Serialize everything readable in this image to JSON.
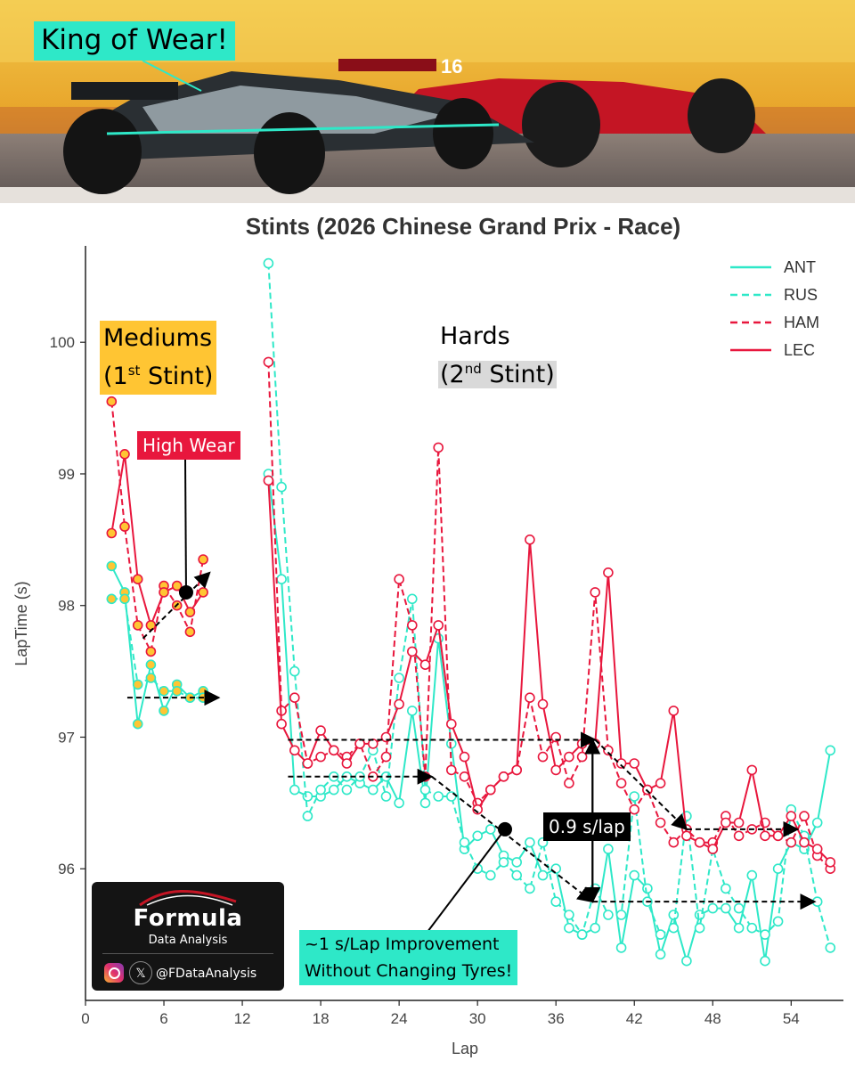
{
  "banner": {
    "label": "King of Wear!"
  },
  "annotations": {
    "mediums_line1": "Mediums",
    "mediums_line2_pre": "(1",
    "mediums_sup": "st",
    "mediums_line2_post": " Stint)",
    "hards_line1": "Hards",
    "hards_line2_pre": "(2",
    "hards_sup": "nd",
    "hards_line2_post": " Stint)",
    "high_wear": "High Wear",
    "rate_gap": "0.9 s/lap",
    "improvement_line1": "~1 s/Lap Improvement",
    "improvement_line2": "Without Changing Tyres!"
  },
  "logo": {
    "name": "Formula",
    "sub": "Data Analysis",
    "handle": "@FDataAnalysis",
    "x_glyph": "𝕏",
    "icons": [
      "instagram-icon",
      "x-icon"
    ]
  },
  "colors": {
    "cyan": "#2ee8c8",
    "red": "#e8173d",
    "marker_fill_mediums": "#ffc533"
  },
  "chart_data": {
    "type": "line",
    "title": "Stints (2026 Chinese Grand Prix - Race)",
    "xlabel": "Lap",
    "ylabel": "LapTime (s)",
    "xlim": [
      0,
      58
    ],
    "ylim": [
      95,
      100.8
    ],
    "xticks": [
      0,
      6,
      12,
      18,
      24,
      30,
      36,
      42,
      48,
      54
    ],
    "yticks": [
      96,
      97,
      98,
      99,
      100
    ],
    "legend_position": "top-right",
    "series": [
      {
        "name": "ANT",
        "color": "#2ee8c8",
        "style": "solid",
        "stints": [
          {
            "tyre": "MEDIUM",
            "x": [
              2,
              3,
              4,
              5,
              6,
              7,
              8,
              9
            ],
            "y": [
              98.3,
              98.1,
              97.1,
              97.55,
              97.2,
              97.4,
              97.3,
              97.35
            ]
          },
          {
            "tyre": "HARD",
            "x": [
              14,
              15,
              16,
              17,
              18,
              19,
              20,
              21,
              22,
              23,
              24,
              25,
              26,
              27,
              28,
              29,
              30,
              31,
              32,
              33,
              34,
              35,
              36,
              37,
              38,
              39,
              40,
              41,
              42,
              43,
              44,
              45,
              46,
              47,
              48,
              49,
              50,
              51,
              52,
              53,
              54,
              55,
              56,
              57
            ],
            "y": [
              99.0,
              98.2,
              96.6,
              96.55,
              96.55,
              96.6,
              96.7,
              96.65,
              96.6,
              96.7,
              96.5,
              97.2,
              96.5,
              97.75,
              96.95,
              96.15,
              96.25,
              96.3,
              96.1,
              96.05,
              96.2,
              95.95,
              96.0,
              95.55,
              95.5,
              95.55,
              96.15,
              95.4,
              95.95,
              95.85,
              95.35,
              95.65,
              95.3,
              95.65,
              95.7,
              95.7,
              95.55,
              95.95,
              95.3,
              96.0,
              96.2,
              96.15,
              96.35,
              96.9
            ]
          }
        ]
      },
      {
        "name": "RUS",
        "color": "#2ee8c8",
        "style": "dashed",
        "stints": [
          {
            "tyre": "MEDIUM",
            "x": [
              2,
              3,
              4,
              5,
              6,
              7,
              8,
              9
            ],
            "y": [
              98.05,
              98.05,
              97.4,
              97.45,
              97.35,
              97.35,
              97.3,
              97.3
            ]
          },
          {
            "tyre": "HARD",
            "x": [
              14,
              15,
              16,
              17,
              18,
              19,
              20,
              21,
              22,
              23,
              24,
              25,
              26,
              27,
              28,
              29,
              30,
              31,
              32,
              33,
              34,
              35,
              36,
              37,
              38,
              39,
              40,
              41,
              42,
              43,
              44,
              45,
              46,
              47,
              48,
              49,
              50,
              51,
              52,
              53,
              54,
              55,
              56,
              57
            ],
            "y": [
              100.6,
              98.9,
              97.5,
              96.4,
              96.6,
              96.7,
              96.6,
              96.7,
              96.9,
              96.55,
              97.45,
              98.05,
              96.6,
              96.55,
              96.55,
              96.2,
              96.0,
              95.95,
              96.05,
              95.95,
              95.85,
              96.2,
              95.75,
              95.65,
              95.5,
              95.85,
              95.65,
              95.65,
              96.55,
              95.75,
              95.5,
              95.55,
              96.4,
              95.55,
              96.15,
              95.85,
              95.7,
              95.55,
              95.5,
              95.6,
              96.45,
              96.25,
              95.75,
              95.4
            ]
          }
        ]
      },
      {
        "name": "HAM",
        "color": "#e8173d",
        "style": "dashed",
        "stints": [
          {
            "tyre": "MEDIUM",
            "x": [
              2,
              3,
              4,
              5,
              6,
              7,
              8,
              9
            ],
            "y": [
              99.55,
              98.6,
              97.85,
              97.65,
              98.15,
              98.0,
              97.8,
              98.35
            ]
          },
          {
            "tyre": "HARD",
            "x": [
              14,
              15,
              16,
              17,
              18,
              19,
              20,
              21,
              22,
              23,
              24,
              25,
              26,
              27,
              28,
              29,
              30,
              31,
              32,
              33,
              34,
              35,
              36,
              37,
              38,
              39,
              40,
              41,
              42,
              43,
              44,
              45,
              46,
              47,
              48,
              49,
              50,
              51,
              52,
              53,
              54,
              55,
              56,
              57
            ],
            "y": [
              99.85,
              97.2,
              97.3,
              96.8,
              96.85,
              96.9,
              96.85,
              96.95,
              96.7,
              96.85,
              98.2,
              97.85,
              96.7,
              99.2,
              96.75,
              96.7,
              96.5,
              96.6,
              96.7,
              96.75,
              97.3,
              96.85,
              97.0,
              96.65,
              96.85,
              98.1,
              96.9,
              96.65,
              96.45,
              96.6,
              96.35,
              96.2,
              96.3,
              96.2,
              96.2,
              96.4,
              96.25,
              96.3,
              96.35,
              96.25,
              96.2,
              96.4,
              96.1,
              96.0
            ]
          }
        ]
      },
      {
        "name": "LEC",
        "color": "#e8173d",
        "style": "solid",
        "stints": [
          {
            "tyre": "MEDIUM",
            "x": [
              2,
              3,
              4,
              5,
              6,
              7,
              8,
              9
            ],
            "y": [
              98.55,
              99.15,
              98.2,
              97.85,
              98.1,
              98.15,
              97.95,
              98.1
            ]
          },
          {
            "tyre": "HARD",
            "x": [
              14,
              15,
              16,
              17,
              18,
              19,
              20,
              21,
              22,
              23,
              24,
              25,
              26,
              27,
              28,
              29,
              30,
              31,
              32,
              33,
              34,
              35,
              36,
              37,
              38,
              39,
              40,
              41,
              42,
              43,
              44,
              45,
              46,
              47,
              48,
              49,
              50,
              51,
              52,
              53,
              54,
              55,
              56,
              57
            ],
            "y": [
              98.95,
              97.1,
              96.9,
              96.8,
              97.05,
              96.9,
              96.8,
              96.95,
              96.95,
              97.0,
              97.25,
              97.65,
              97.55,
              97.85,
              97.1,
              96.85,
              96.45,
              96.6,
              96.7,
              96.75,
              98.5,
              97.25,
              96.75,
              96.85,
              96.95,
              96.95,
              98.25,
              96.8,
              96.8,
              96.6,
              96.65,
              97.2,
              96.25,
              96.2,
              96.15,
              96.35,
              96.35,
              96.75,
              96.25,
              96.25,
              96.4,
              96.2,
              96.15,
              96.05
            ]
          }
        ]
      }
    ]
  }
}
